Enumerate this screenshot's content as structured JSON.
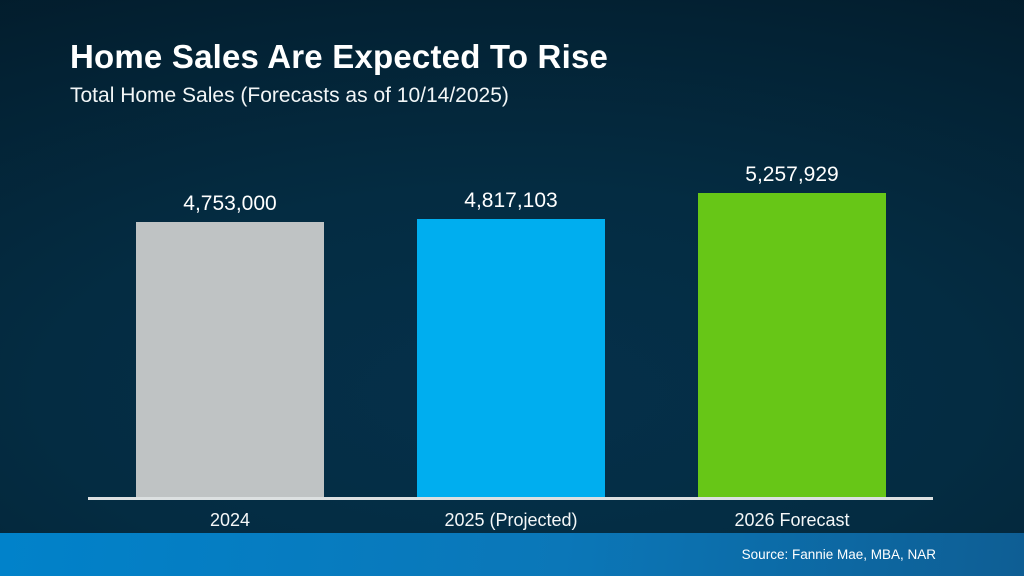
{
  "header": {
    "title": "Home Sales Are Expected To Rise",
    "subtitle": "Total Home Sales (Forecasts as of 10/14/2025)"
  },
  "footer": {
    "source": "Source: Fannie Mae, MBA, NAR"
  },
  "colors": {
    "background_center": "#05304a",
    "background_edge": "#021521",
    "axis_line": "#dce0e1",
    "value_label_text": "#ffffff",
    "footer_band_left": "#0182ca",
    "footer_band_right": "#0e5e94"
  },
  "chart_data": {
    "type": "bar",
    "title": "Home Sales Are Expected To Rise",
    "subtitle": "Total Home Sales (Forecasts as of 10/14/2025)",
    "categories": [
      "2024",
      "2025 (Projected)",
      "2026 Forecast"
    ],
    "values": [
      4753000,
      4817103,
      5257929
    ],
    "value_labels": [
      "4,753,000",
      "4,817,103",
      "5,257,929"
    ],
    "bar_colors": [
      "#bfc3c4",
      "#00aeef",
      "#67c617"
    ],
    "xlabel": "",
    "ylabel": "",
    "ylim": [
      0,
      5257929
    ],
    "grid": false,
    "legend": false,
    "value_labels_position": "above-bars",
    "source": "Source: Fannie Mae, MBA, NAR"
  }
}
